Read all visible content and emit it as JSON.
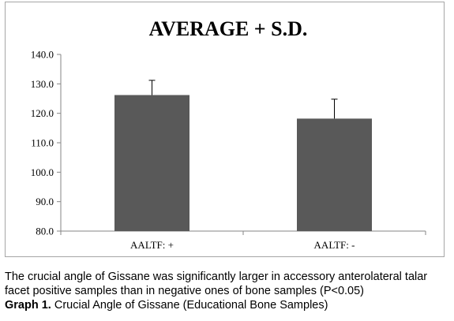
{
  "chart_data": {
    "type": "bar",
    "title": "AVERAGE + S.D.",
    "categories": [
      "AALTF: +",
      "AALTF: -"
    ],
    "values": [
      126.2,
      118.2
    ],
    "error_plus": [
      5.0,
      6.6
    ],
    "ylim": [
      80.0,
      140.0
    ],
    "yticks": [
      "80.0",
      "90.0",
      "100.0",
      "110.0",
      "120.0",
      "130.0",
      "140.0"
    ],
    "ytick_values": [
      80,
      90,
      100,
      110,
      120,
      130,
      140
    ],
    "bar_color": "#595959",
    "grid": false,
    "legend": "none"
  },
  "caption": {
    "text": "The crucial angle of Gissane was significantly larger in accessory anterolateral talar facet positive samples than in negative ones of bone samples (P<0.05)",
    "graph_label": "Graph 1.",
    "graph_title": " Crucial Angle of Gissane (Educational Bone Samples)"
  }
}
